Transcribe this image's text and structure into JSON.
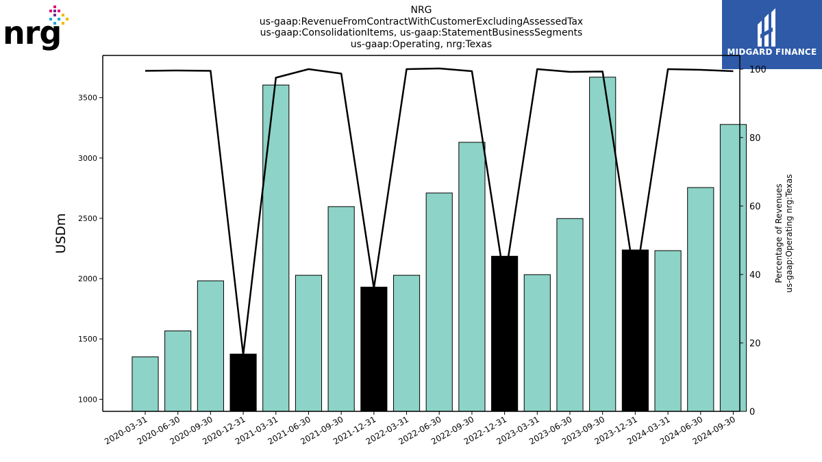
{
  "company_logo": {
    "text": "nrg"
  },
  "brand": {
    "name": "MIDGARD FINANCE"
  },
  "title_lines": [
    "NRG",
    "us-gaap:RevenueFromContractWithCustomerExcludingAssessedTax",
    "us-gaap:ConsolidationItems, us-gaap:StatementBusinessSegments",
    "us-gaap:Operating, nrg:Texas"
  ],
  "colors": {
    "bar_default": "#8dd3c7",
    "bar_highlight": "#000000",
    "line": "#000000",
    "brand_bg": "#2e5aa8"
  },
  "chart_data": {
    "type": "bar",
    "categories": [
      "2020-03-31",
      "2020-06-30",
      "2020-09-30",
      "2020-12-31",
      "2021-03-31",
      "2021-06-30",
      "2021-09-30",
      "2021-12-31",
      "2022-03-31",
      "2022-06-30",
      "2022-09-30",
      "2022-12-31",
      "2023-03-31",
      "2023-06-30",
      "2023-09-30",
      "2023-12-31",
      "2024-03-31",
      "2024-06-30",
      "2024-09-30"
    ],
    "values": [
      1352,
      1567,
      1982,
      1375,
      3605,
      2028,
      2597,
      1930,
      2028,
      2710,
      3130,
      2186,
      2033,
      2498,
      3670,
      2238,
      2232,
      2755,
      3278
    ],
    "highlight": [
      false,
      false,
      false,
      true,
      false,
      false,
      false,
      true,
      false,
      false,
      false,
      true,
      false,
      false,
      false,
      true,
      false,
      false,
      false
    ],
    "line_series": {
      "values": [
        99.5,
        99.6,
        99.5,
        16.5,
        97.5,
        100.0,
        98.7,
        36.0,
        100.0,
        100.2,
        99.4,
        38.0,
        100.0,
        99.2,
        99.3,
        37.5,
        100.0,
        99.8,
        99.4
      ]
    },
    "ylabel": "USDm",
    "ylim": [
      900,
      3850
    ],
    "yticks": [
      1000,
      1500,
      2000,
      2500,
      3000,
      3500
    ],
    "y2label_lines": [
      "Percentage of Revenues",
      "us-gaap:Operating nrg:Texas"
    ],
    "y2lim": [
      0,
      104
    ],
    "y2ticks": [
      0,
      20,
      40,
      60,
      80,
      100
    ],
    "grid": false
  }
}
